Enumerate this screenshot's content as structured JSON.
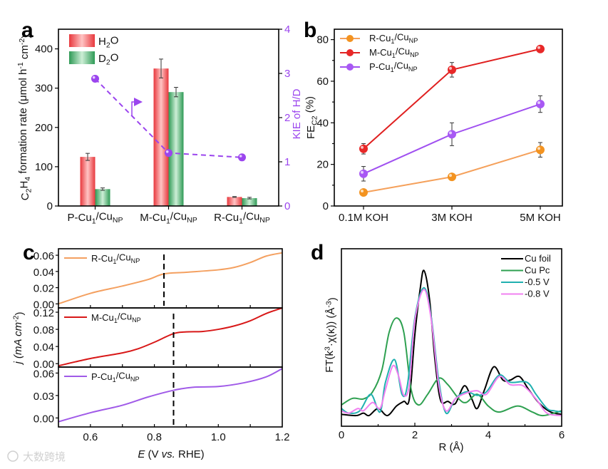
{
  "panel_labels": [
    "a",
    "b",
    "c",
    "d"
  ],
  "watermark": "大数跨境",
  "chart_data": [
    {
      "panel": "a",
      "type": "bar",
      "categories": [
        "P-Cu_{1}/Cu_{NP}",
        "M-Cu_{1}/Cu_{NP}",
        "R-Cu_{1}/Cu_{NP}"
      ],
      "series": [
        {
          "name": "H_{2}O",
          "values": [
            125,
            350,
            23
          ],
          "errors": [
            9,
            24,
            1
          ],
          "color": "#e8383d",
          "light": "#ffc4c4"
        },
        {
          "name": "D_{2}O",
          "values": [
            43,
            290,
            20
          ],
          "errors": [
            3,
            12,
            2
          ],
          "color": "#2e9a55",
          "light": "#cdeed6"
        }
      ],
      "ylabel": "C_{2}H_{4} formation rate (μmol h^{-1} cm^{-2})",
      "ylim": [
        0,
        450
      ],
      "yticks": [
        0,
        100,
        200,
        300,
        400
      ],
      "secondary": {
        "type": "line",
        "name": "KIE of H/D",
        "ylabel": "KIE of H/D",
        "values": [
          2.88,
          1.2,
          1.1
        ],
        "ylim": [
          0,
          4
        ],
        "yticks": [
          0,
          1,
          2,
          3,
          4
        ],
        "color": "#9b45ee",
        "dashed": true,
        "annotation": "arrow pointing to right axis"
      },
      "legend": "top-left"
    },
    {
      "panel": "b",
      "type": "line",
      "categories": [
        "0.1M KOH",
        "3M KOH",
        "5M KOH"
      ],
      "series": [
        {
          "name": "R-Cu_{1}/Cu_{NP}",
          "values": [
            6.5,
            14,
            27
          ],
          "errors": [
            1,
            1,
            3.5
          ],
          "color": "#f5a05a",
          "marker": "#f39320"
        },
        {
          "name": "M-Cu_{1}/Cu_{NP}",
          "values": [
            27.5,
            65.5,
            75.5
          ],
          "errors": [
            2.5,
            3.5,
            1
          ],
          "color": "#e02020",
          "marker": "#e82828"
        },
        {
          "name": "P-Cu_{1}/Cu_{NP}",
          "values": [
            15.5,
            34.5,
            49
          ],
          "errors": [
            3.5,
            5.5,
            4
          ],
          "color": "#a050f0",
          "marker": "#a858f4"
        }
      ],
      "ylabel": "FE_{C2} (%)",
      "ylim": [
        0,
        85
      ],
      "yticks": [
        0,
        20,
        40,
        60,
        80
      ],
      "legend": "top-left"
    },
    {
      "panel": "c",
      "type": "line",
      "xlabel": "E (V vs. RHE)",
      "ylabel": "j (mA cm^{-2})",
      "xlim": [
        0.5,
        1.2
      ],
      "xticks": [
        0.6,
        0.8,
        1.0,
        1.2
      ],
      "xtick_labels": [
        "0.6",
        "0.8",
        "1.0",
        "1.2"
      ],
      "subplots": [
        {
          "name": "R-Cu_{1}/Cu_{NP}",
          "color": "#f4a060",
          "ylim": [
            -0.005,
            0.068
          ],
          "yticks": [
            0,
            0.02,
            0.04,
            0.06
          ],
          "ytick_labels": [
            "0.00",
            "0.02",
            "0.04",
            "0.06"
          ],
          "marker_line": 0.83,
          "x": [
            0.5,
            0.6,
            0.7,
            0.78,
            0.83,
            0.9,
            1.0,
            1.05,
            1.1,
            1.15,
            1.2
          ],
          "y": [
            0.0,
            0.013,
            0.022,
            0.03,
            0.037,
            0.039,
            0.042,
            0.045,
            0.051,
            0.059,
            0.063
          ]
        },
        {
          "name": "M-Cu_{1}/Cu_{NP}",
          "color": "#d81818",
          "ylim": [
            -0.008,
            0.13
          ],
          "yticks": [
            0,
            0.04,
            0.08,
            0.12
          ],
          "ytick_labels": [
            "0.00",
            "0.04",
            "0.08",
            "0.12"
          ],
          "marker_line": 0.86,
          "x": [
            0.5,
            0.6,
            0.7,
            0.75,
            0.8,
            0.86,
            0.9,
            0.95,
            1.0,
            1.05,
            1.1,
            1.15,
            1.2
          ],
          "y": [
            -0.005,
            0.012,
            0.025,
            0.035,
            0.05,
            0.07,
            0.074,
            0.075,
            0.08,
            0.088,
            0.1,
            0.117,
            0.13
          ]
        },
        {
          "name": "P-Cu_{1}/Cu_{NP}",
          "color": "#a05ae8",
          "ylim": [
            -0.012,
            0.068
          ],
          "yticks": [
            0,
            0.03,
            0.06
          ],
          "ytick_labels": [
            "0.00",
            "0.03",
            "0.06"
          ],
          "marker_line": 0.86,
          "x": [
            0.5,
            0.6,
            0.7,
            0.78,
            0.86,
            0.92,
            1.0,
            1.08,
            1.15,
            1.2
          ],
          "y": [
            -0.005,
            0.007,
            0.017,
            0.028,
            0.037,
            0.041,
            0.042,
            0.047,
            0.055,
            0.066
          ]
        }
      ]
    },
    {
      "panel": "d",
      "type": "line",
      "xlabel": "R (Å)",
      "ylabel": "FT(k^{3}·χ(κ)) (Å^{-3})",
      "xlim": [
        0,
        6
      ],
      "xticks": [
        0,
        2,
        4,
        6
      ],
      "xtick_labels": [
        "0",
        "2",
        "4",
        "6"
      ],
      "ylim": [
        0,
        1
      ],
      "legend": "top-right",
      "series": [
        {
          "name": "Cu foil",
          "color": "#000000",
          "x": [
            0,
            0.4,
            0.6,
            0.75,
            1.0,
            1.25,
            1.5,
            1.7,
            1.85,
            2.0,
            2.15,
            2.25,
            2.4,
            2.55,
            2.7,
            2.9,
            3.1,
            3.35,
            3.55,
            3.7,
            3.9,
            4.15,
            4.4,
            4.6,
            4.85,
            5.1,
            5.4,
            5.7,
            6.0
          ],
          "y": [
            0.067,
            0.06,
            0.074,
            0.06,
            0.1,
            0.06,
            0.114,
            0.14,
            0.154,
            0.515,
            0.78,
            0.877,
            0.716,
            0.37,
            0.147,
            0.14,
            0.127,
            0.228,
            0.154,
            0.1,
            0.207,
            0.335,
            0.26,
            0.26,
            0.28,
            0.207,
            0.127,
            0.08,
            0.067
          ]
        },
        {
          "name": "Cu Pc",
          "color": "#2ea050",
          "x": [
            0,
            0.3,
            0.6,
            0.85,
            1.1,
            1.3,
            1.5,
            1.7,
            1.9,
            2.1,
            2.35,
            2.65,
            2.9,
            3.2,
            3.4,
            3.7,
            4.0,
            4.3,
            4.8,
            5.2,
            5.5,
            6.0
          ],
          "y": [
            0.12,
            0.157,
            0.154,
            0.194,
            0.315,
            0.529,
            0.61,
            0.529,
            0.207,
            0.12,
            0.18,
            0.27,
            0.234,
            0.154,
            0.134,
            0.18,
            0.114,
            0.08,
            0.114,
            0.08,
            0.06,
            0.087
          ]
        },
        {
          "name": "-0.5 V",
          "color": "#20b0b0",
          "x": [
            0,
            0.2,
            0.5,
            0.8,
            1.05,
            1.2,
            1.45,
            1.65,
            1.8,
            2.0,
            2.25,
            2.45,
            2.65,
            2.85,
            3.1,
            3.4,
            3.7,
            3.95,
            4.3,
            4.6,
            5.05,
            5.3,
            5.6,
            5.8,
            6.0
          ],
          "y": [
            0.1,
            0.074,
            0.087,
            0.18,
            0.08,
            0.248,
            0.375,
            0.18,
            0.234,
            0.61,
            0.78,
            0.61,
            0.26,
            0.074,
            0.154,
            0.194,
            0.174,
            0.194,
            0.288,
            0.248,
            0.248,
            0.18,
            0.1,
            0.087,
            0.08
          ]
        },
        {
          "name": "-0.8 V",
          "color": "#f080f0",
          "x": [
            0,
            0.2,
            0.45,
            0.6,
            0.85,
            1.05,
            1.2,
            1.4,
            1.55,
            1.7,
            1.85,
            2.0,
            2.25,
            2.45,
            2.65,
            2.85,
            3.1,
            3.4,
            3.7,
            3.95,
            4.3,
            4.6,
            4.95,
            5.3,
            5.6,
            6.0
          ],
          "y": [
            0.087,
            0.074,
            0.1,
            0.087,
            0.134,
            0.1,
            0.207,
            0.34,
            0.288,
            0.174,
            0.234,
            0.596,
            0.77,
            0.596,
            0.234,
            0.087,
            0.154,
            0.187,
            0.2,
            0.18,
            0.28,
            0.234,
            0.228,
            0.154,
            0.074,
            0.06
          ]
        }
      ]
    }
  ]
}
